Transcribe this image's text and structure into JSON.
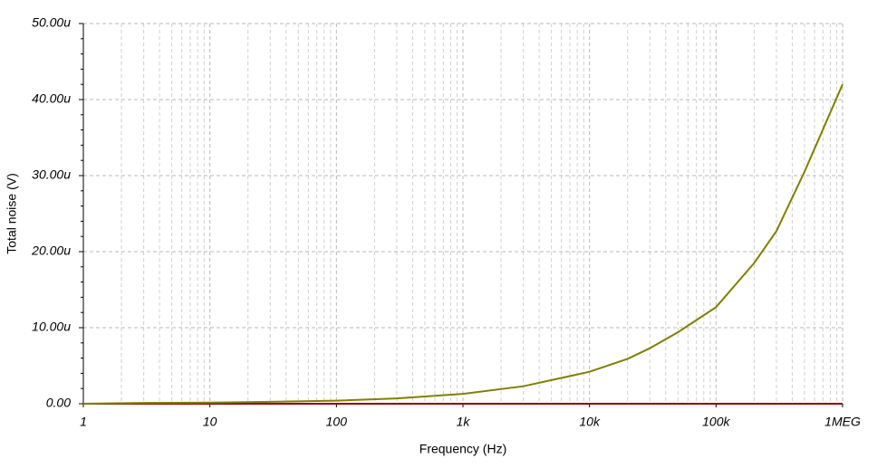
{
  "chart_data": {
    "type": "line",
    "x_label": "Frequency (Hz)",
    "y_label": "Total noise (V)",
    "xscale": "log",
    "grid": true,
    "x": [
      1,
      3,
      10,
      30,
      100,
      300,
      1000,
      3000,
      10000,
      20000,
      30000,
      50000,
      100000,
      200000,
      300000,
      500000,
      1000000
    ],
    "series": [
      {
        "color": "#808000",
        "values": [
          0,
          0.1,
          0.15,
          0.25,
          0.4,
          0.7,
          1.3,
          2.3,
          4.2,
          5.9,
          7.3,
          9.4,
          12.7,
          18.5,
          22.7,
          30.5,
          42
        ]
      },
      {
        "color": "#8b0000",
        "values": [
          0,
          0,
          0,
          0,
          0,
          0,
          0,
          0,
          0,
          0,
          0,
          0,
          0,
          0,
          0,
          0,
          0
        ]
      }
    ],
    "xlim": [
      1,
      1000000
    ],
    "xticks": [
      1,
      10,
      100,
      {
        "value": 1000,
        "label": "1k"
      },
      {
        "value": 10000,
        "label": "10k"
      },
      {
        "value": 100000,
        "label": "100k"
      },
      {
        "value": 1000000,
        "label": "1MEG"
      }
    ],
    "ylim": [
      0,
      50
    ],
    "yticks": [
      {
        "value": 0,
        "label": "0.00"
      },
      {
        "value": 10,
        "label": "10.00u"
      },
      {
        "value": 20,
        "label": "20.00u"
      },
      {
        "value": 30,
        "label": "30.00u"
      },
      {
        "value": 40,
        "label": "40.00u"
      },
      {
        "value": 50,
        "label": "50.00u"
      }
    ]
  }
}
